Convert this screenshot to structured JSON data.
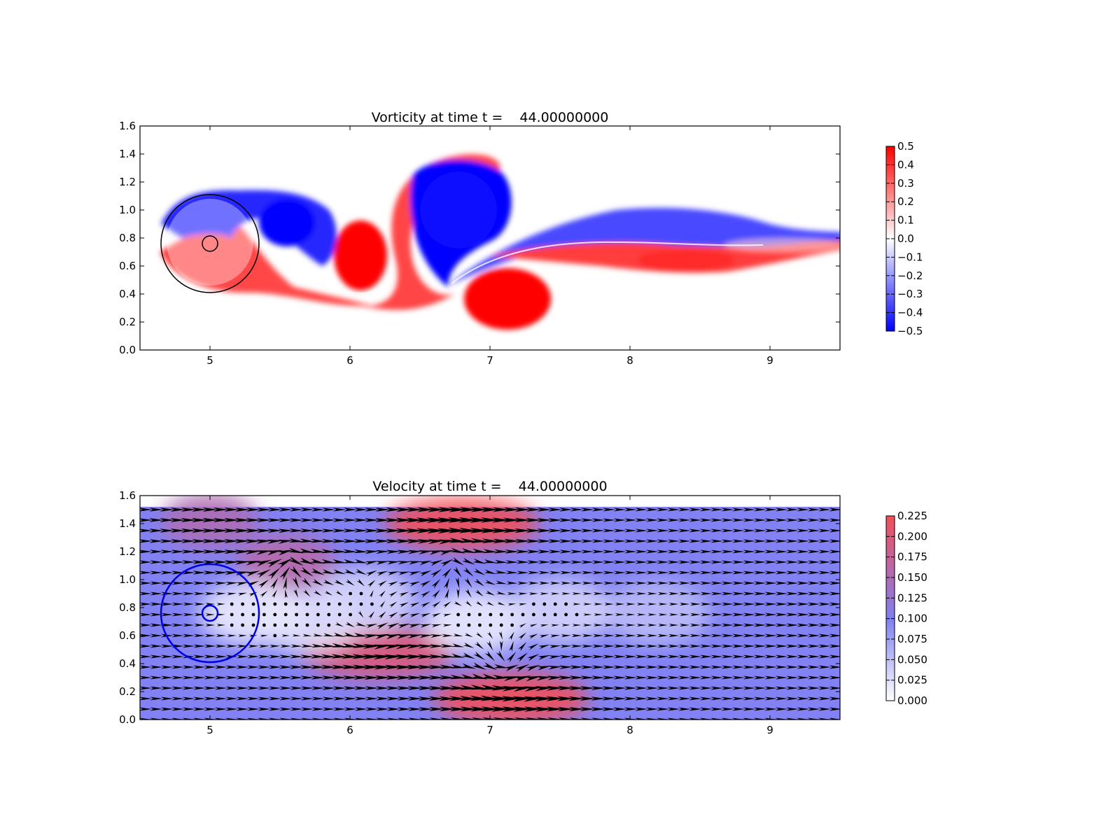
{
  "chart_data": [
    {
      "type": "heatmap",
      "title": "Vorticity at time t =    44.00000000",
      "xlabel": "",
      "ylabel": "",
      "xlim": [
        4.5,
        9.5
      ],
      "ylim": [
        0.0,
        1.6
      ],
      "xticks": [
        "5",
        "6",
        "7",
        "8",
        "9"
      ],
      "yticks": [
        "0.0",
        "0.2",
        "0.4",
        "0.6",
        "0.8",
        "1.0",
        "1.2",
        "1.4",
        "1.6"
      ],
      "colormap": "bwr",
      "colorbar": {
        "range": [
          -0.5,
          0.5
        ],
        "ticks": [
          "0.5",
          "0.4",
          "0.3",
          "0.2",
          "0.1",
          "0.0",
          "−0.1",
          "−0.2",
          "−0.3",
          "−0.4",
          "−0.5"
        ]
      },
      "vortices": [
        {
          "x": 5.58,
          "y": 0.92,
          "value": -0.5
        },
        {
          "x": 6.12,
          "y": 0.66,
          "value": 0.5
        },
        {
          "x": 6.75,
          "y": 0.96,
          "value": -0.5
        },
        {
          "x": 7.12,
          "y": 0.37,
          "value": 0.5
        },
        {
          "x": 8.3,
          "y": 0.83,
          "value": -0.35
        },
        {
          "x": 8.3,
          "y": 0.66,
          "value": 0.4
        }
      ],
      "circles": [
        {
          "cx": 5.0,
          "cy": 0.76,
          "r": 0.35,
          "color": "#000000"
        },
        {
          "cx": 5.0,
          "cy": 0.76,
          "r": 0.055,
          "color": "#000000"
        }
      ]
    },
    {
      "type": "heatmap",
      "title": "Velocity at time t =    44.00000000",
      "xlabel": "",
      "ylabel": "",
      "xlim": [
        4.5,
        9.5
      ],
      "ylim": [
        0.0,
        1.6
      ],
      "xticks": [
        "5",
        "6",
        "7",
        "8",
        "9"
      ],
      "yticks": [
        "0.0",
        "0.2",
        "0.4",
        "0.6",
        "0.8",
        "1.0",
        "1.2",
        "1.4",
        "1.6"
      ],
      "colormap": "white-blue-red",
      "colorbar": {
        "range": [
          0.0,
          0.225
        ],
        "ticks": [
          "0.225",
          "0.200",
          "0.175",
          "0.150",
          "0.125",
          "0.100",
          "0.075",
          "0.050",
          "0.025",
          "0.000"
        ]
      },
      "field_top": 1.52,
      "background_speed": 0.1,
      "fast_regions": [
        {
          "x": 6.8,
          "y": 1.4,
          "value": 0.225
        },
        {
          "x": 7.15,
          "y": 0.15,
          "value": 0.225
        },
        {
          "x": 6.2,
          "y": 0.48,
          "value": 0.2
        },
        {
          "x": 5.55,
          "y": 1.12,
          "value": 0.16
        },
        {
          "x": 5.0,
          "y": 1.42,
          "value": 0.15
        }
      ],
      "slow_regions": [
        {
          "x": 5.3,
          "y": 0.76,
          "value": 0.01
        },
        {
          "x": 5.7,
          "y": 0.7,
          "value": 0.02
        },
        {
          "x": 6.1,
          "y": 0.85,
          "value": 0.03
        },
        {
          "x": 6.9,
          "y": 0.7,
          "value": 0.01
        },
        {
          "x": 7.5,
          "y": 0.78,
          "value": 0.03
        },
        {
          "x": 8.2,
          "y": 0.76,
          "value": 0.05
        }
      ],
      "circles": [
        {
          "cx": 5.0,
          "cy": 0.76,
          "r": 0.35,
          "color": "#0000e6"
        },
        {
          "cx": 5.0,
          "cy": 0.76,
          "r": 0.055,
          "color": "#0000e6"
        }
      ]
    }
  ]
}
